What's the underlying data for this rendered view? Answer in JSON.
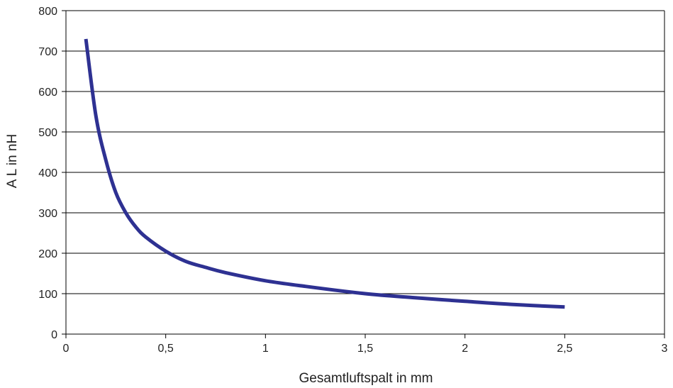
{
  "chart_data": {
    "type": "line",
    "title": "",
    "xlabel": "Gesamtluftspalt in mm",
    "ylabel": "A L  in nH",
    "xlim": [
      0,
      3
    ],
    "ylim": [
      0,
      800
    ],
    "x_ticks": [
      "0",
      "0,5",
      "1",
      "1,5",
      "2",
      "2,5",
      "3"
    ],
    "x_tick_values": [
      0,
      0.5,
      1,
      1.5,
      2,
      2.5,
      3
    ],
    "y_ticks": [
      "0",
      "100",
      "200",
      "300",
      "400",
      "500",
      "600",
      "700",
      "800"
    ],
    "y_tick_values": [
      0,
      100,
      200,
      300,
      400,
      500,
      600,
      700,
      800
    ],
    "grid": {
      "horizontal": true,
      "vertical": false
    },
    "legend": "none",
    "series": [
      {
        "color": "#2e3192",
        "x": [
          0.1,
          0.15,
          0.2,
          0.25,
          0.3,
          0.35,
          0.4,
          0.5,
          0.6,
          0.7,
          0.8,
          1.0,
          1.2,
          1.5,
          1.75,
          2.0,
          2.25,
          2.5
        ],
        "y": [
          730,
          540,
          430,
          350,
          300,
          265,
          240,
          205,
          180,
          165,
          152,
          132,
          118,
          100,
          90,
          81,
          73,
          67
        ]
      }
    ]
  }
}
